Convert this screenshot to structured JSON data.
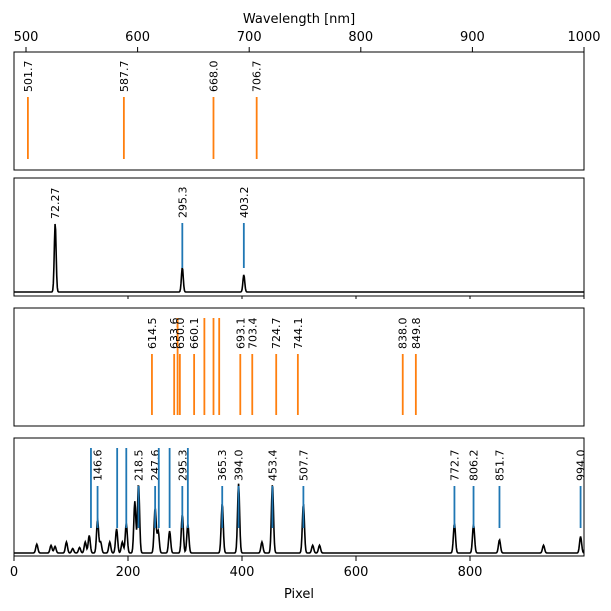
{
  "chart_data": {
    "type": "line",
    "top_axis": {
      "label": "Wavelength [nm]",
      "range": [
        500,
        1000
      ],
      "ticks": [
        500,
        600,
        700,
        800,
        900,
        1000
      ]
    },
    "bottom_axis": {
      "label": "Pixel",
      "range": [
        0,
        1000
      ],
      "ticks": [
        0,
        200,
        400,
        600,
        800
      ]
    },
    "colors": {
      "reference": "#ff7f0e",
      "detected": "#1f77b4",
      "spectrum": "#000000"
    },
    "panels": [
      {
        "id": "reference-wavelengths",
        "xaxis": "wavelength",
        "lines": [
          {
            "x": 501.7,
            "label": "501.7",
            "color": "reference"
          },
          {
            "x": 587.7,
            "label": "587.7",
            "color": "reference"
          },
          {
            "x": 668.0,
            "label": "668.0",
            "color": "reference"
          },
          {
            "x": 706.7,
            "label": "706.7",
            "color": "reference"
          }
        ]
      },
      {
        "id": "reference-spectrum",
        "xaxis": "pixel",
        "peaks": [
          {
            "x": 72.27,
            "h": 0.92,
            "label": "72.27",
            "marker": false
          },
          {
            "x": 295.3,
            "h": 0.33,
            "label": "295.3",
            "marker": true
          },
          {
            "x": 403.2,
            "h": 0.23,
            "label": "403.2",
            "marker": true
          }
        ]
      },
      {
        "id": "matched-wavelengths",
        "xaxis": "pixel",
        "lines": [
          {
            "x": 242,
            "label": "614.5"
          },
          {
            "x": 281,
            "label": "633.6"
          },
          {
            "x": 287,
            "label": ""
          },
          {
            "x": 291,
            "label": "650.0"
          },
          {
            "x": 316,
            "label": "660.1"
          },
          {
            "x": 334,
            "label": ""
          },
          {
            "x": 350,
            "label": ""
          },
          {
            "x": 360,
            "label": ""
          },
          {
            "x": 397,
            "label": "693.1"
          },
          {
            "x": 418,
            "label": "703.4"
          },
          {
            "x": 460,
            "label": "724.7"
          },
          {
            "x": 498,
            "label": "744.1"
          },
          {
            "x": 682,
            "label": "838.0"
          },
          {
            "x": 705,
            "label": "849.8"
          }
        ]
      },
      {
        "id": "arc-spectrum",
        "xaxis": "pixel",
        "detected_lines": [
          {
            "x": 135,
            "label": ""
          },
          {
            "x": 146.6,
            "label": "146.6"
          },
          {
            "x": 181,
            "label": ""
          },
          {
            "x": 197,
            "label": ""
          },
          {
            "x": 218.5,
            "label": "218.5"
          },
          {
            "x": 247.6,
            "label": "247.6"
          },
          {
            "x": 254,
            "label": ""
          },
          {
            "x": 273,
            "label": ""
          },
          {
            "x": 295.3,
            "label": "295.3"
          },
          {
            "x": 305,
            "label": ""
          },
          {
            "x": 365.3,
            "label": "365.3"
          },
          {
            "x": 394.0,
            "label": "394.0"
          },
          {
            "x": 453.4,
            "label": "453.4"
          },
          {
            "x": 507.7,
            "label": "507.7"
          },
          {
            "x": 772.7,
            "label": "772.7"
          },
          {
            "x": 806.2,
            "label": "806.2"
          },
          {
            "x": 851.7,
            "label": "851.7"
          },
          {
            "x": 994.0,
            "label": "994.0"
          }
        ],
        "peaks": [
          {
            "x": 40,
            "h": 0.08
          },
          {
            "x": 65,
            "h": 0.07
          },
          {
            "x": 72,
            "h": 0.06
          },
          {
            "x": 92,
            "h": 0.1
          },
          {
            "x": 103,
            "h": 0.04
          },
          {
            "x": 115,
            "h": 0.05
          },
          {
            "x": 125,
            "h": 0.1
          },
          {
            "x": 132,
            "h": 0.16
          },
          {
            "x": 146.6,
            "h": 0.3
          },
          {
            "x": 152,
            "h": 0.1
          },
          {
            "x": 168,
            "h": 0.1
          },
          {
            "x": 180,
            "h": 0.22
          },
          {
            "x": 190,
            "h": 0.1
          },
          {
            "x": 197,
            "h": 0.27
          },
          {
            "x": 212,
            "h": 0.47
          },
          {
            "x": 218.5,
            "h": 0.63
          },
          {
            "x": 247.6,
            "h": 0.41
          },
          {
            "x": 253,
            "h": 0.2
          },
          {
            "x": 273,
            "h": 0.2
          },
          {
            "x": 295.3,
            "h": 0.35
          },
          {
            "x": 305,
            "h": 0.26
          },
          {
            "x": 365.3,
            "h": 0.45
          },
          {
            "x": 394.0,
            "h": 0.63
          },
          {
            "x": 435,
            "h": 0.1
          },
          {
            "x": 453.4,
            "h": 0.63
          },
          {
            "x": 507.7,
            "h": 0.45
          },
          {
            "x": 524,
            "h": 0.07
          },
          {
            "x": 536,
            "h": 0.07
          },
          {
            "x": 772.7,
            "h": 0.27
          },
          {
            "x": 806.2,
            "h": 0.26
          },
          {
            "x": 851.7,
            "h": 0.12
          },
          {
            "x": 929,
            "h": 0.07
          },
          {
            "x": 994.0,
            "h": 0.15
          }
        ]
      }
    ]
  }
}
